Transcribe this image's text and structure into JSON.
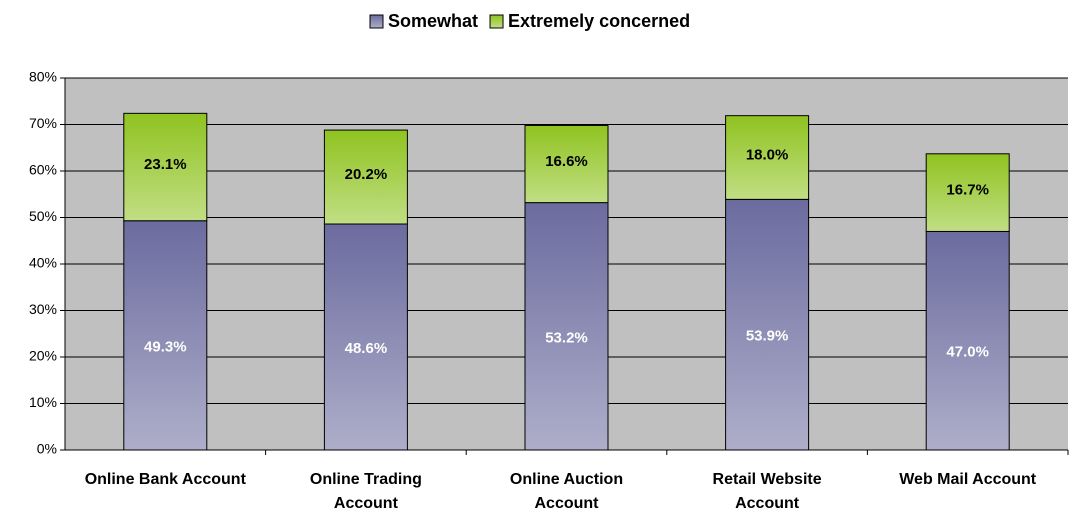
{
  "chart_data": {
    "type": "stacked_bar",
    "categories": [
      "Online Bank Account",
      "Online Trading Account",
      "Online Auction Account",
      "Retail Website Account",
      "Web Mail Account"
    ],
    "series": [
      {
        "name": "Somewhat",
        "color": "#6b6b9f",
        "values": [
          49.3,
          48.6,
          53.2,
          53.9,
          47.0
        ],
        "value_labels": [
          "49.3%",
          "48.6%",
          "53.2%",
          "53.9%",
          "47.0%"
        ]
      },
      {
        "name": "Extremely concerned",
        "color": "#8fc320",
        "values": [
          23.1,
          20.2,
          16.6,
          18.0,
          16.7
        ],
        "value_labels": [
          "23.1%",
          "20.2%",
          "16.6%",
          "18.0%",
          "16.7%"
        ]
      }
    ],
    "ylim": [
      0,
      80
    ],
    "yticks": [
      {
        "value": 0,
        "label": "0%"
      },
      {
        "value": 10,
        "label": "10%"
      },
      {
        "value": 20,
        "label": "20%"
      },
      {
        "value": 30,
        "label": "30%"
      },
      {
        "value": 40,
        "label": "40%"
      },
      {
        "value": 50,
        "label": "50%"
      },
      {
        "value": 60,
        "label": "60%"
      },
      {
        "value": 70,
        "label": "70%"
      },
      {
        "value": 80,
        "label": "80%"
      }
    ],
    "grid": true,
    "legend": "top"
  }
}
